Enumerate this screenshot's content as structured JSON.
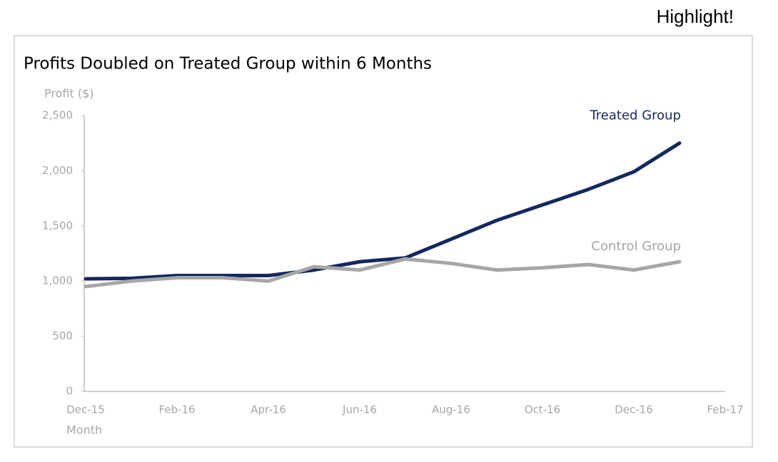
{
  "highlight_button": "Highlight!",
  "chart_data": {
    "type": "line",
    "title": "Profits Doubled on Treated Group within 6 Months",
    "y_label": "Profit ($)",
    "x_label": "Month",
    "categories": [
      "Dec-15",
      null,
      "Feb-16",
      null,
      "Apr-16",
      null,
      "Jun-16",
      null,
      "Aug-16",
      null,
      "Oct-16",
      null,
      "Dec-16",
      null,
      "Feb-17"
    ],
    "series": [
      {
        "name": "Treated Group",
        "color": "#13295e",
        "values": [
          1020,
          1025,
          1050,
          1050,
          1050,
          1100,
          1175,
          1210,
          1380,
          1550,
          1690,
          1830,
          1990,
          2250,
          null
        ]
      },
      {
        "name": "Control Group",
        "color": "#a6a6a6",
        "values": [
          950,
          1000,
          1030,
          1030,
          1000,
          1130,
          1100,
          1200,
          1160,
          1100,
          1120,
          1150,
          1100,
          1175,
          null
        ]
      }
    ],
    "ylim": [
      0,
      2500
    ],
    "yticks": [
      0,
      500,
      {
        "value": 1000,
        "label": "1,000"
      },
      {
        "value": 1500,
        "label": "1,500"
      },
      {
        "value": 2000,
        "label": "2,000"
      },
      {
        "value": 2500,
        "label": "2,500"
      }
    ],
    "grid": false
  }
}
